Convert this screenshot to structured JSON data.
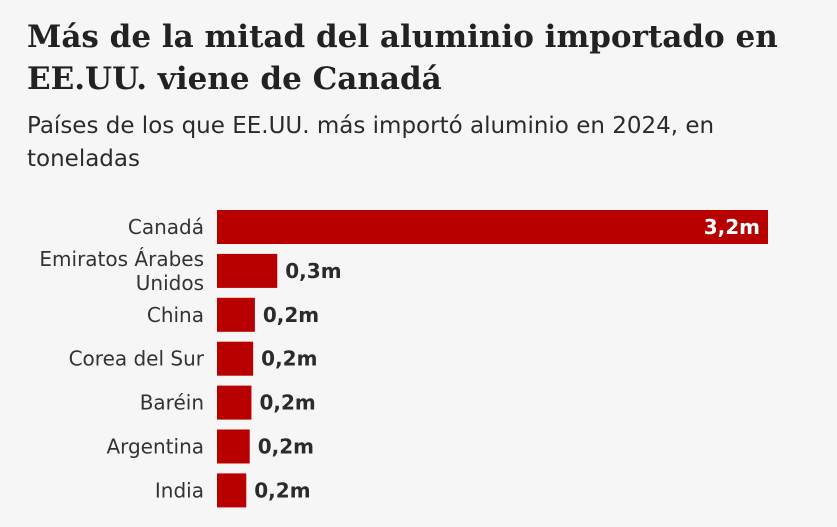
{
  "title": "Más de la mitad del aluminio importado en EE.UU. viene de Canadá",
  "subtitle": "Países de los que EE.UU. más importó aluminio en 2024, en toneladas",
  "colors": {
    "bar": "#b80000",
    "background": "#f6f6f6",
    "text": "#222222",
    "value_inside": "#ffffff",
    "value_outside": "#2b2b2b"
  },
  "chart_data": {
    "type": "bar",
    "orientation": "horizontal",
    "unit": "toneladas",
    "categories": [
      "Canadá",
      "Emiratos Árabes Unidos",
      "China",
      "Corea del Sur",
      "Baréin",
      "Argentina",
      "India"
    ],
    "category_lines": [
      [
        "Canadá"
      ],
      [
        "Emiratos Árabes",
        "Unidos"
      ],
      [
        "China"
      ],
      [
        "Corea del Sur"
      ],
      [
        "Baréin"
      ],
      [
        "Argentina"
      ],
      [
        "India"
      ]
    ],
    "values": [
      3.2,
      0.35,
      0.22,
      0.21,
      0.2,
      0.19,
      0.17
    ],
    "value_labels": [
      "3,2m",
      "0,3m",
      "0,2m",
      "0,2m",
      "0,2m",
      "0,2m",
      "0,2m"
    ],
    "xlim": [
      0,
      3.2
    ],
    "grid": false,
    "legend": "none"
  }
}
